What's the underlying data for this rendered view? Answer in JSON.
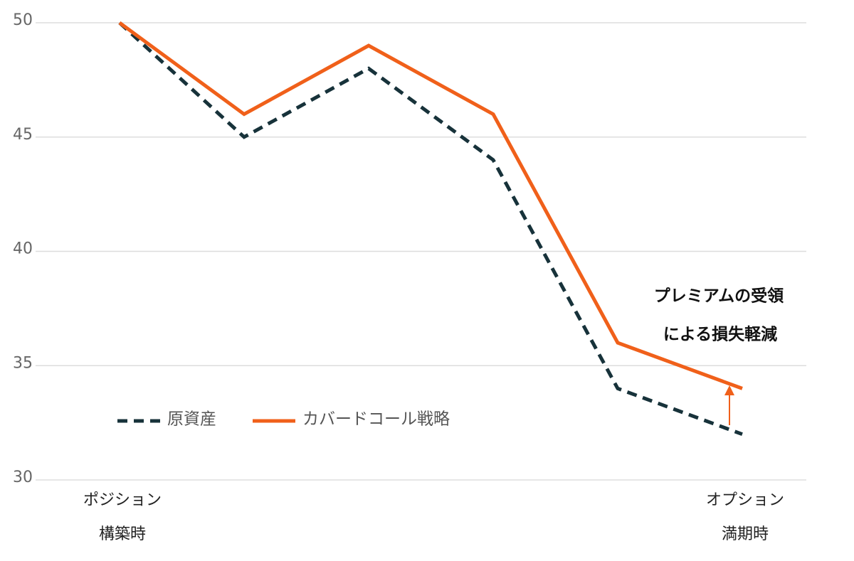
{
  "chart_data": {
    "type": "line",
    "categories": [
      [
        "ポジション",
        "構築時"
      ],
      null,
      null,
      null,
      null,
      [
        "オプション",
        "満期時"
      ]
    ],
    "series": [
      {
        "name": "原資産",
        "color": "#17323a",
        "dash": true,
        "values": [
          50,
          45,
          48,
          44,
          34,
          32
        ]
      },
      {
        "name": "カバードコール戦略",
        "color": "#f0601a",
        "dash": false,
        "values": [
          50,
          46,
          49,
          46,
          36,
          34
        ]
      }
    ],
    "ylim": [
      30,
      50
    ],
    "yticks": [
      30,
      35,
      40,
      45,
      50
    ],
    "grid": true,
    "annotation": [
      "プレミアムの受領",
      "による損失軽減"
    ]
  }
}
